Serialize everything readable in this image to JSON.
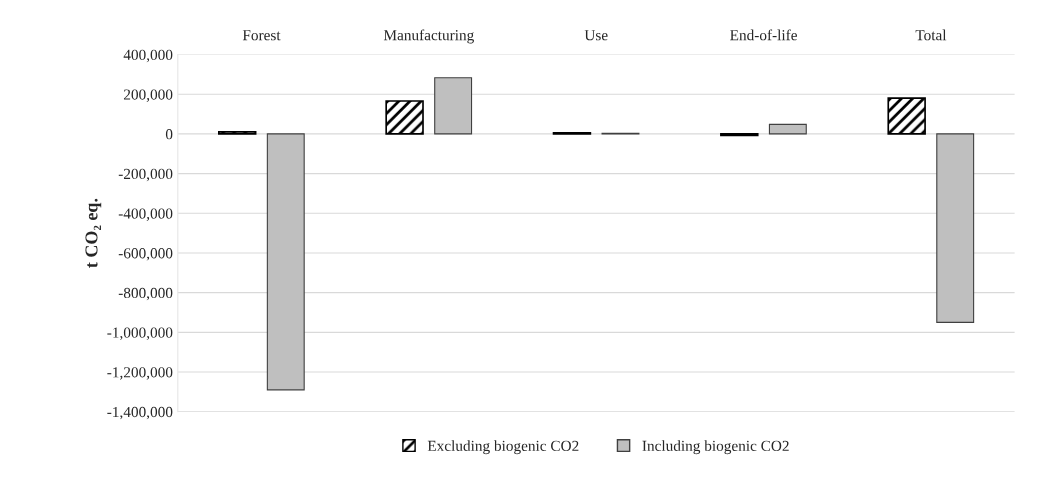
{
  "chart_data": {
    "type": "bar",
    "categories": [
      "Forest",
      "Manufacturing",
      "Use",
      "End-of-life",
      "Total"
    ],
    "series": [
      {
        "name": "Excluding biogenic CO2",
        "color": "#000000",
        "values": [
          10000,
          166000,
          5000,
          -8000,
          180000
        ]
      },
      {
        "name": "Including biogenic CO2",
        "color": "#bfbfbf",
        "values": [
          -1290000,
          283000,
          3000,
          48000,
          -950000
        ]
      }
    ],
    "ylabel": "t CO₂ eq.",
    "ylim": [
      -1400000,
      400000
    ],
    "yticks": [
      {
        "value": -1400000,
        "label": "-1,400,000"
      },
      {
        "value": -1200000,
        "label": "-1,200,000"
      },
      {
        "value": -1000000,
        "label": "-1,000,000"
      },
      {
        "value": -800000,
        "label": "-800,000"
      },
      {
        "value": -600000,
        "label": "-600,000"
      },
      {
        "value": -400000,
        "label": "-400,000"
      },
      {
        "value": -200000,
        "label": "-200,000"
      },
      0,
      {
        "value": 200000,
        "label": "200,000"
      },
      {
        "value": 400000,
        "label": "400,000"
      }
    ],
    "grid": "y",
    "legend": "bottom"
  }
}
